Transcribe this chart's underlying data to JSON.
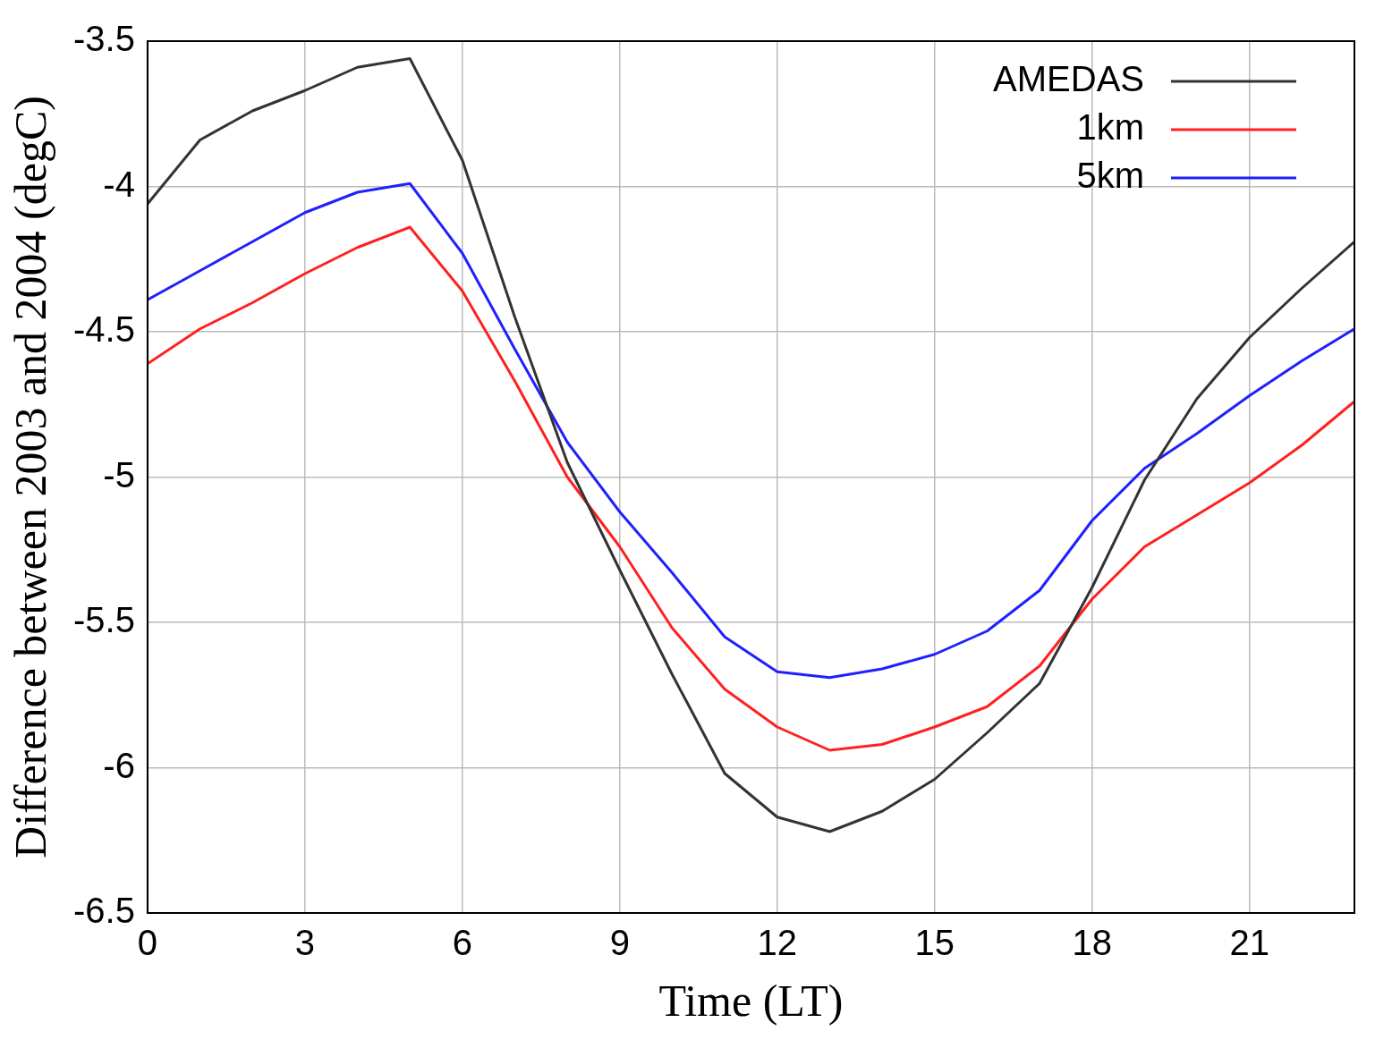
{
  "chart_data": {
    "type": "line",
    "xlabel": "Time (LT)",
    "ylabel": "Difference between 2003 and 2004 (degC)",
    "x": [
      0,
      1,
      2,
      3,
      4,
      5,
      6,
      7,
      8,
      9,
      10,
      11,
      12,
      13,
      14,
      15,
      16,
      17,
      18,
      19,
      20,
      21,
      22,
      23
    ],
    "series": [
      {
        "name": "AMEDAS",
        "color": "#333333",
        "values": [
          -4.06,
          -3.84,
          -3.74,
          -3.67,
          -3.59,
          -3.56,
          -3.91,
          -4.45,
          -4.95,
          -5.32,
          -5.68,
          -6.02,
          -6.17,
          -6.22,
          -6.15,
          -6.04,
          -5.88,
          -5.71,
          -5.38,
          -5.01,
          -4.73,
          -4.52,
          -4.35,
          -4.19
        ]
      },
      {
        "name": "1km",
        "color": "#ff2020",
        "values": [
          -4.61,
          -4.49,
          -4.4,
          -4.3,
          -4.21,
          -4.14,
          -4.36,
          -4.67,
          -5.0,
          -5.24,
          -5.52,
          -5.73,
          -5.86,
          -5.94,
          -5.92,
          -5.86,
          -5.79,
          -5.65,
          -5.42,
          -5.24,
          -5.13,
          -5.02,
          -4.89,
          -4.74
        ]
      },
      {
        "name": "5km",
        "color": "#2020ff",
        "values": [
          -4.39,
          -4.29,
          -4.19,
          -4.09,
          -4.02,
          -3.99,
          -4.23,
          -4.56,
          -4.88,
          -5.12,
          -5.33,
          -5.55,
          -5.67,
          -5.69,
          -5.66,
          -5.61,
          -5.53,
          -5.39,
          -5.15,
          -4.97,
          -4.85,
          -4.72,
          -4.6,
          -4.49
        ]
      }
    ],
    "xlim": [
      0,
      23
    ],
    "xticks": [
      0,
      3,
      6,
      9,
      12,
      15,
      18,
      21
    ],
    "ylim": [
      -6.5,
      -3.5
    ],
    "yticks": [
      -6.5,
      -6,
      -5.5,
      -5,
      -4.5,
      -4,
      -3.5
    ],
    "grid": true,
    "legend": "top right",
    "marker": "none",
    "line_style": "solid"
  }
}
